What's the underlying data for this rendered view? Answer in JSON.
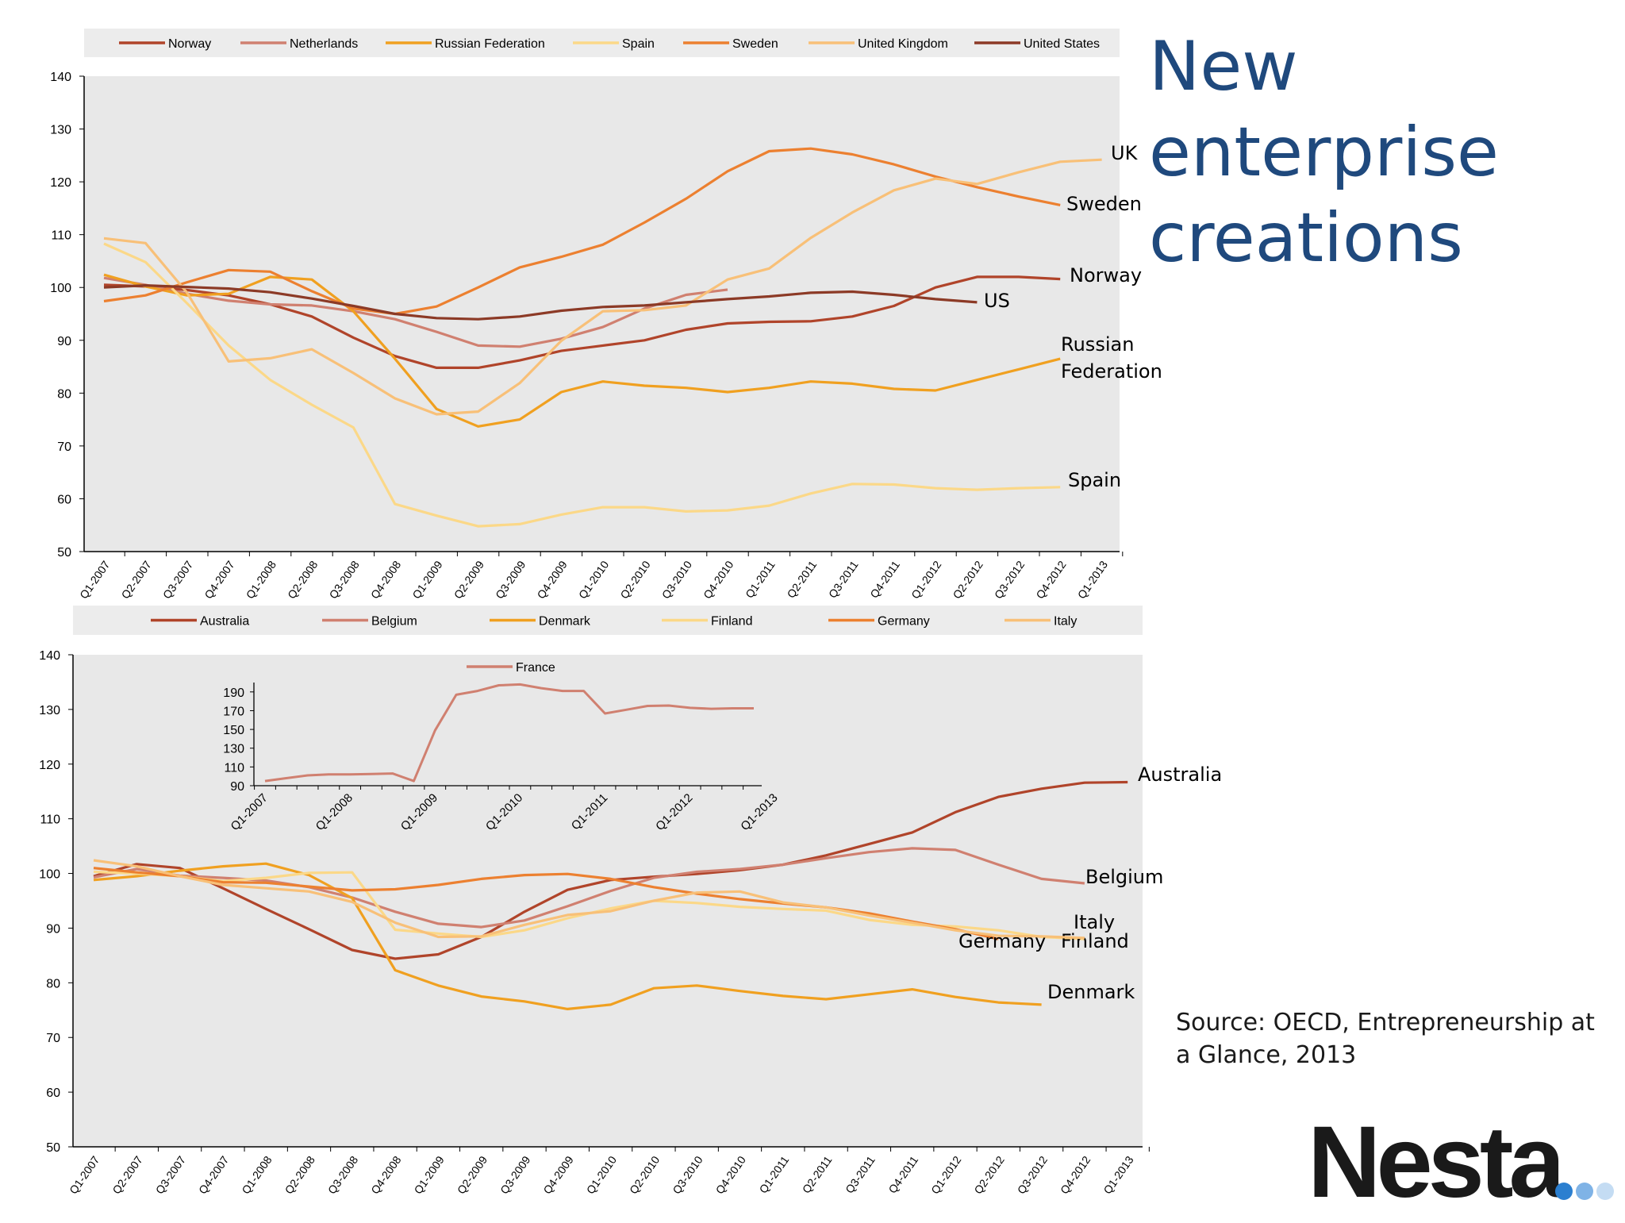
{
  "slide": {
    "title": "New enterprise creations",
    "source": "Source: OECD, Entrepreneurship at a Glance, 2013",
    "logo": "Nesta",
    "colors": {
      "title": "#1f497d",
      "plot_bg": "#e8e8e8",
      "legend_bg": "#ececec"
    }
  },
  "chart_data": [
    {
      "type": "line",
      "ylim": [
        50,
        140
      ],
      "yticks": [
        50,
        60,
        70,
        80,
        90,
        100,
        110,
        120,
        130,
        140
      ],
      "grid": false,
      "legend_position": "top",
      "categories": [
        "Q1-2007",
        "Q2-2007",
        "Q3-2007",
        "Q4-2007",
        "Q1-2008",
        "Q2-2008",
        "Q3-2008",
        "Q4-2008",
        "Q1-2009",
        "Q2-2009",
        "Q3-2009",
        "Q4-2009",
        "Q1-2010",
        "Q2-2010",
        "Q3-2010",
        "Q4-2010",
        "Q1-2011",
        "Q2-2011",
        "Q3-2011",
        "Q4-2011",
        "Q1-2012",
        "Q2-2012",
        "Q3-2012",
        "Q4-2012",
        "Q1-2013"
      ],
      "series": [
        {
          "name": "Norway",
          "color": "#b0442a",
          "label": "Norway",
          "values": [
            100.5,
            100.2,
            99.5,
            98.5,
            96.8,
            94.5,
            90.5,
            87,
            84.8,
            84.8,
            86.2,
            88,
            89,
            90,
            92,
            93.2,
            93.5,
            93.6,
            94.5,
            96.5,
            100,
            102,
            102,
            101.6,
            null
          ]
        },
        {
          "name": "Netherlands",
          "color": "#d08070",
          "label": null,
          "values": [
            101.8,
            100.5,
            98.8,
            97.5,
            96.8,
            96.6,
            95.5,
            94,
            91.6,
            89,
            88.8,
            90.3,
            92.5,
            96,
            98.6,
            99.6,
            null,
            null,
            null,
            null,
            null,
            null,
            null,
            null,
            null
          ]
        },
        {
          "name": "Russian Federation",
          "color": "#f0a020",
          "label": "Russian Federation",
          "values": [
            102.4,
            100.2,
            98.5,
            98.8,
            102,
            101.5,
            95.5,
            86.5,
            77,
            73.7,
            75,
            80.2,
            82.2,
            81.4,
            81,
            80.2,
            81,
            82.2,
            81.8,
            80.8,
            80.5,
            82.5,
            84.5,
            86.5,
            null
          ]
        },
        {
          "name": "Spain",
          "color": "#fbd888",
          "label": "Spain",
          "values": [
            108.3,
            104.8,
            97,
            89,
            82.5,
            77.8,
            73.5,
            59,
            56.8,
            54.8,
            55.2,
            57,
            58.4,
            58.4,
            57.6,
            57.8,
            58.7,
            61,
            62.8,
            62.7,
            62,
            61.7,
            62,
            62.2,
            null
          ]
        },
        {
          "name": "Sweden",
          "color": "#ec8030",
          "label": "Sweden",
          "values": [
            97.4,
            98.5,
            101,
            103.3,
            103,
            99.3,
            96,
            95,
            96.4,
            100,
            103.8,
            105.8,
            108.1,
            112.3,
            116.8,
            122,
            125.8,
            126.3,
            125.2,
            123.3,
            121,
            119,
            117.2,
            115.6,
            null
          ]
        },
        {
          "name": "United Kingdom",
          "color": "#f8c078",
          "label": "UK",
          "values": [
            109.3,
            108.4,
            99,
            86,
            86.6,
            88.3,
            83.8,
            79,
            76,
            76.5,
            81.9,
            89.9,
            95.5,
            95.7,
            96.6,
            101.5,
            103.6,
            109.4,
            114.2,
            118.4,
            120.6,
            119.6,
            121.8,
            123.8,
            124.2
          ]
        },
        {
          "name": "United States",
          "color": "#8c3a26",
          "label": "US",
          "values": [
            100,
            100.4,
            100.1,
            99.8,
            99.1,
            97.9,
            96.5,
            95,
            94.2,
            94,
            94.5,
            95.6,
            96.3,
            96.6,
            97.2,
            97.8,
            98.3,
            99,
            99.2,
            98.6,
            97.8,
            97.2,
            null,
            null,
            null
          ]
        }
      ]
    },
    {
      "type": "line",
      "ylim": [
        50,
        140
      ],
      "yticks": [
        50,
        60,
        70,
        80,
        90,
        100,
        110,
        120,
        130,
        140
      ],
      "grid": false,
      "legend_position": "top",
      "categories": [
        "Q1-2007",
        "Q2-2007",
        "Q3-2007",
        "Q4-2007",
        "Q1-2008",
        "Q2-2008",
        "Q3-2008",
        "Q4-2008",
        "Q1-2009",
        "Q2-2009",
        "Q3-2009",
        "Q4-2009",
        "Q1-2010",
        "Q2-2010",
        "Q3-2010",
        "Q4-2010",
        "Q1-2011",
        "Q2-2011",
        "Q3-2011",
        "Q4-2011",
        "Q1-2012",
        "Q2-2012",
        "Q3-2012",
        "Q4-2012",
        "Q1-2013"
      ],
      "series": [
        {
          "name": "Australia",
          "color": "#b0442a",
          "label": "Australia",
          "values": [
            99.5,
            101.7,
            101,
            97.3,
            93.5,
            89.8,
            86,
            84.4,
            85.2,
            88.4,
            93,
            97,
            98.8,
            99.4,
            99.9,
            100.6,
            101.6,
            103.3,
            105.4,
            107.5,
            111.2,
            114,
            115.5,
            116.6,
            116.7
          ]
        },
        {
          "name": "Belgium",
          "color": "#d08070",
          "label": "Belgium",
          "values": [
            99.3,
            100.8,
            99.6,
            99.2,
            98.7,
            97.5,
            95.6,
            93,
            90.8,
            90.2,
            91.4,
            94,
            96.8,
            99.2,
            100.3,
            100.8,
            101.6,
            102.8,
            103.9,
            104.6,
            104.3,
            101.6,
            99,
            98.2,
            null
          ]
        },
        {
          "name": "Denmark",
          "color": "#f0a020",
          "label": "Denmark",
          "values": [
            98.8,
            99.5,
            100.5,
            101.3,
            101.8,
            99.7,
            95.5,
            82.3,
            79.5,
            77.5,
            76.6,
            75.2,
            76,
            79,
            79.5,
            78.5,
            77.6,
            77,
            77.9,
            78.8,
            77.4,
            76.4,
            76,
            null,
            null
          ]
        },
        {
          "name": "Finland",
          "color": "#fbd888",
          "label": "Finland",
          "values": [
            100.3,
            100,
            99.5,
            98.6,
            99.2,
            100.1,
            100.2,
            89.7,
            89,
            88.4,
            89.6,
            91.8,
            93.6,
            95,
            94.6,
            93.9,
            93.5,
            93.2,
            91.5,
            90.6,
            90.3,
            89.6,
            88.4,
            88,
            null
          ]
        },
        {
          "name": "Germany",
          "color": "#ec8030",
          "label": "Germany",
          "values": [
            101,
            100.2,
            99.5,
            98.4,
            98.3,
            97.6,
            96.9,
            97.1,
            97.9,
            99,
            99.7,
            99.9,
            99,
            97.5,
            96.3,
            95.3,
            94.5,
            93.8,
            92.7,
            91.2,
            89.8,
            88,
            null,
            null,
            null
          ]
        },
        {
          "name": "Italy",
          "color": "#f8c078",
          "label": "Italy",
          "values": [
            102.4,
            101.3,
            99.5,
            97.9,
            97.3,
            96.7,
            94.8,
            91,
            88.4,
            88.5,
            90.6,
            92.4,
            93.1,
            95,
            96.5,
            96.7,
            94.7,
            93.8,
            92.3,
            91,
            89.6,
            88.6,
            88.5,
            88.2,
            null
          ]
        }
      ],
      "inset": {
        "type": "line",
        "series_name": "France",
        "color": "#d08070",
        "yticks": [
          90,
          110,
          130,
          150,
          170,
          190
        ],
        "ylim": [
          90,
          200
        ],
        "x_labels": [
          "Q1-2007",
          "Q1-2008",
          "Q1-2009",
          "Q1-2010",
          "Q1-2011",
          "Q1-2012",
          "Q1-2013"
        ],
        "values": [
          95,
          98,
          101,
          102,
          102,
          102.5,
          103,
          95,
          149,
          187,
          191,
          197,
          198,
          194,
          191,
          191,
          167,
          171,
          175,
          175.5,
          173,
          172,
          172.5,
          172.5
        ]
      }
    }
  ]
}
